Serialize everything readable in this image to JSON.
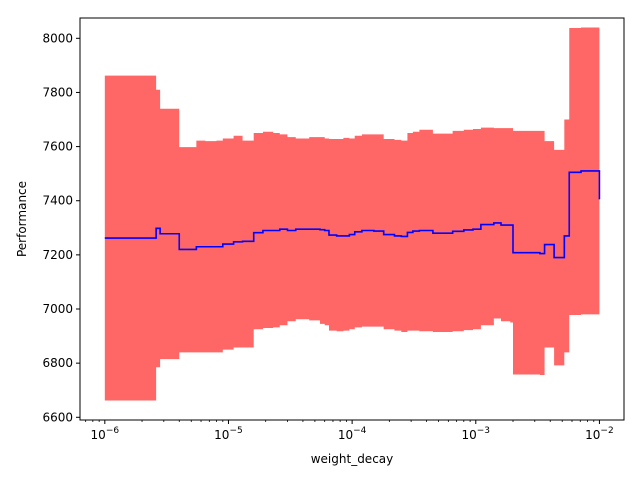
{
  "chart_data": {
    "type": "area",
    "xlabel": "weight_decay",
    "ylabel": "Performance",
    "xscale": "log",
    "xlim": [
      6.3e-07,
      0.0158
    ],
    "ylim": [
      6590,
      8075
    ],
    "grid": false,
    "x_ticks": [
      {
        "value": 1e-06,
        "base": "10",
        "exp": "−6"
      },
      {
        "value": 1e-05,
        "base": "10",
        "exp": "−5"
      },
      {
        "value": 0.0001,
        "base": "10",
        "exp": "−4"
      },
      {
        "value": 0.001,
        "base": "10",
        "exp": "−3"
      },
      {
        "value": 0.01,
        "base": "10",
        "exp": "−2"
      }
    ],
    "y_ticks": [
      6600,
      6800,
      7000,
      7200,
      7400,
      7600,
      7800,
      8000
    ],
    "colors": {
      "band": "#ff6666",
      "line": "#0000ff"
    },
    "series": [
      {
        "style": "line",
        "x": [
          1e-06,
          2.4e-06,
          2.6e-06,
          2.8e-06,
          3.7e-06,
          4e-06,
          5e-06,
          5.5e-06,
          6.5e-06,
          8e-06,
          9e-06,
          1.1e-05,
          1.3e-05,
          1.6e-05,
          1.9e-05,
          2.3e-05,
          2.6e-05,
          3e-05,
          3.5e-05,
          4.5e-05,
          5.5e-05,
          6e-05,
          6.5e-05,
          7.5e-05,
          8.5e-05,
          9.5e-05,
          0.000105,
          0.00012,
          0.00015,
          0.00018,
          0.00022,
          0.00025,
          0.00028,
          0.00031,
          0.00035,
          0.00045,
          0.00055,
          0.00065,
          0.0008,
          0.00095,
          0.0011,
          0.0014,
          0.0016,
          0.0019,
          0.002,
          0.0033,
          0.0036,
          0.004,
          0.0043,
          0.0048,
          0.0052,
          0.0057,
          0.0065,
          0.0071,
          0.01
        ],
        "y": [
          7262,
          7262,
          7298,
          7278,
          7278,
          7220,
          7220,
          7230,
          7230,
          7230,
          7240,
          7248,
          7250,
          7282,
          7290,
          7290,
          7295,
          7290,
          7295,
          7295,
          7293,
          7290,
          7273,
          7270,
          7270,
          7275,
          7285,
          7290,
          7288,
          7275,
          7270,
          7268,
          7283,
          7288,
          7290,
          7280,
          7280,
          7287,
          7292,
          7295,
          7312,
          7318,
          7310,
          7310,
          7208,
          7205,
          7238,
          7238,
          7190,
          7190,
          7270,
          7505,
          7505,
          7510,
          7405
        ]
      },
      {
        "style": "band",
        "x": [
          1e-06,
          2.4e-06,
          2.6e-06,
          2.8e-06,
          3.7e-06,
          4e-06,
          5e-06,
          5.5e-06,
          6.5e-06,
          8e-06,
          9e-06,
          1.1e-05,
          1.3e-05,
          1.6e-05,
          1.9e-05,
          2.3e-05,
          2.6e-05,
          3e-05,
          3.5e-05,
          4.5e-05,
          5.5e-05,
          6e-05,
          6.5e-05,
          7.5e-05,
          8.5e-05,
          9.5e-05,
          0.000105,
          0.00012,
          0.00015,
          0.00018,
          0.00022,
          0.00025,
          0.00028,
          0.00031,
          0.00035,
          0.00045,
          0.00055,
          0.00065,
          0.0008,
          0.00095,
          0.0011,
          0.0014,
          0.0016,
          0.0019,
          0.002,
          0.0033,
          0.0036,
          0.004,
          0.0043,
          0.0048,
          0.0052,
          0.0057,
          0.0065,
          0.0071,
          0.01
        ],
        "upper": [
          7862,
          7862,
          7810,
          7740,
          7740,
          7598,
          7598,
          7622,
          7620,
          7622,
          7630,
          7640,
          7622,
          7650,
          7655,
          7650,
          7645,
          7635,
          7630,
          7635,
          7635,
          7630,
          7628,
          7628,
          7632,
          7630,
          7640,
          7645,
          7645,
          7628,
          7625,
          7622,
          7650,
          7655,
          7662,
          7648,
          7648,
          7658,
          7662,
          7665,
          7670,
          7668,
          7668,
          7668,
          7658,
          7658,
          7620,
          7620,
          7588,
          7588,
          7700,
          8038,
          8038,
          8040,
          8000
        ],
        "lower": [
          6662,
          6662,
          6785,
          6815,
          6815,
          6840,
          6840,
          6840,
          6840,
          6840,
          6850,
          6858,
          6858,
          6925,
          6930,
          6932,
          6940,
          6955,
          6962,
          6958,
          6945,
          6940,
          6920,
          6918,
          6920,
          6925,
          6932,
          6935,
          6935,
          6925,
          6920,
          6915,
          6920,
          6920,
          6918,
          6915,
          6915,
          6918,
          6922,
          6925,
          6940,
          6965,
          6955,
          6950,
          6758,
          6756,
          6858,
          6858,
          6792,
          6792,
          6840,
          6978,
          6978,
          6980,
          6810
        ]
      }
    ]
  }
}
